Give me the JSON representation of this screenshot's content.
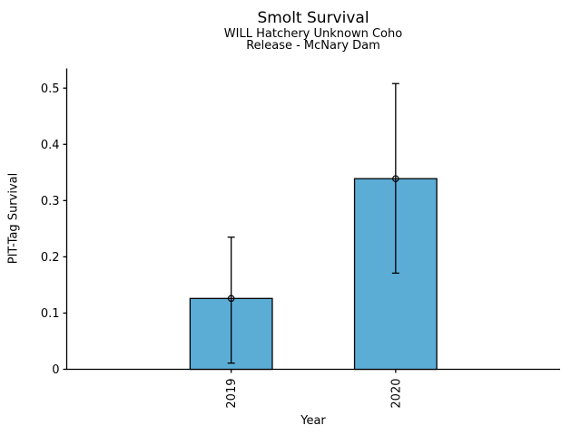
{
  "chart_data": {
    "type": "bar",
    "title": "Smolt Survival",
    "subtitle": [
      "WILL Hatchery Unknown Coho",
      "Release - McNary Dam"
    ],
    "xlabel": "Year",
    "ylabel": "PIT-Tag Survival",
    "categories": [
      "2019",
      "2020"
    ],
    "values": [
      0.126,
      0.339
    ],
    "error_low": [
      0.011,
      0.171
    ],
    "error_high": [
      0.235,
      0.508
    ],
    "yticks": [
      0,
      0.1,
      0.2,
      0.3,
      0.4,
      0.5
    ],
    "ytick_labels": [
      "0",
      "0.1",
      "0.2",
      "0.3",
      "0.4",
      "0.5"
    ],
    "ylim": [
      0,
      0.535
    ],
    "xtick_rotation": 90,
    "bar_width_fraction": 0.5,
    "bar_color": "#5BADD6",
    "bar_edge_color": "#000000",
    "error_color": "#000000",
    "marker": "open-circle",
    "grid": false,
    "legend": "none",
    "background": "#FFFFFF"
  }
}
